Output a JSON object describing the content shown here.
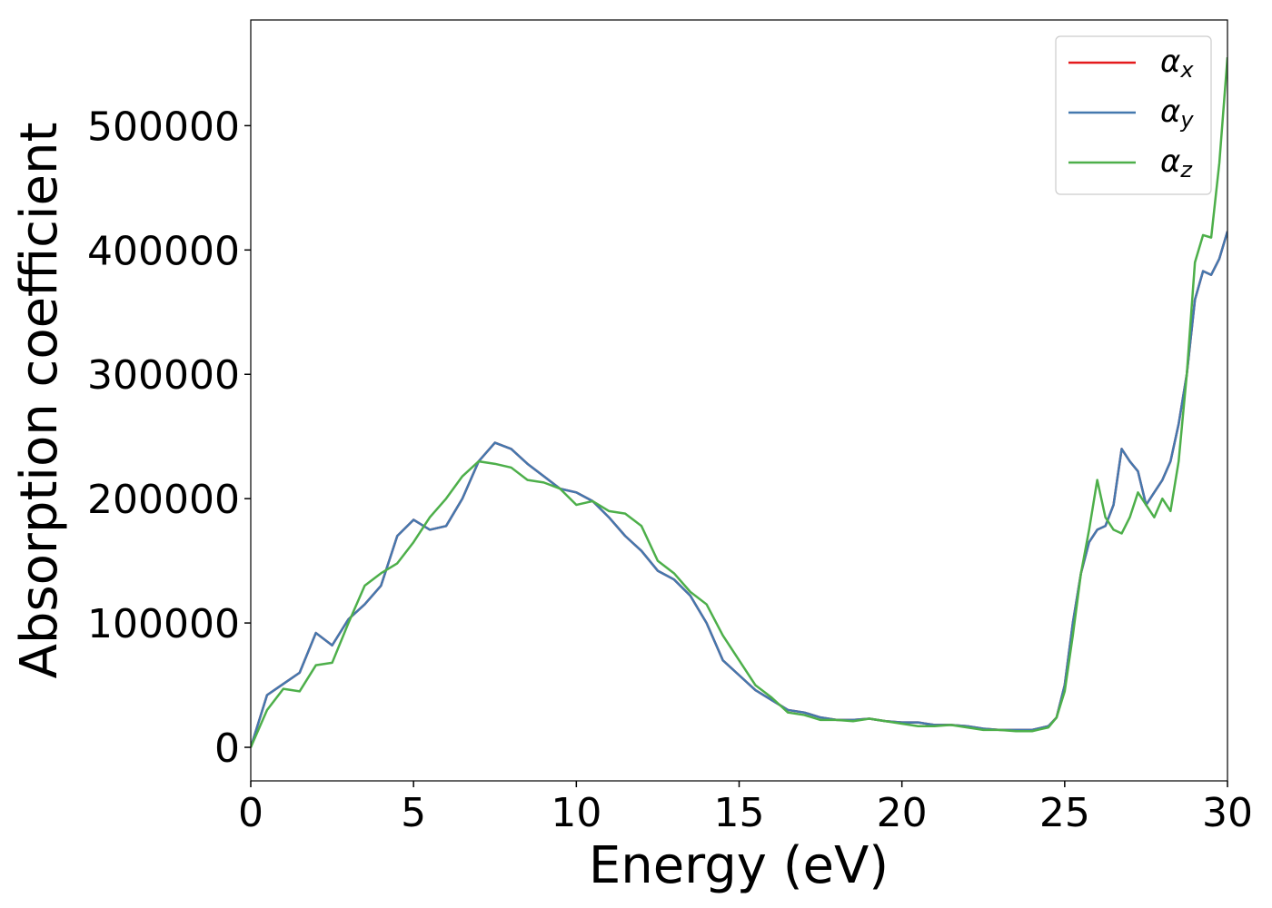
{
  "chart_data": {
    "type": "line",
    "xlabel": "Energy (eV)",
    "ylabel": "Absorption coefficient",
    "x": [
      0,
      0.5,
      1,
      1.5,
      2,
      2.5,
      3,
      3.5,
      4,
      4.5,
      5,
      5.5,
      6,
      6.5,
      7,
      7.5,
      8,
      8.5,
      9,
      9.5,
      10,
      10.5,
      11,
      11.5,
      12,
      12.5,
      13,
      13.5,
      14,
      14.5,
      15,
      15.5,
      16,
      16.5,
      17,
      17.5,
      18,
      18.5,
      19,
      19.5,
      20,
      20.5,
      21,
      21.5,
      22,
      22.5,
      23,
      23.5,
      24,
      24.5,
      24.75,
      25,
      25.25,
      25.5,
      25.75,
      26,
      26.25,
      26.5,
      26.75,
      27,
      27.25,
      27.5,
      27.75,
      28,
      28.25,
      28.5,
      28.75,
      29,
      29.25,
      29.5,
      29.75,
      30
    ],
    "series": [
      {
        "name": "αx",
        "color": "#e41a1c",
        "values": [
          0,
          42000,
          51000,
          60000,
          92000,
          82000,
          103000,
          115000,
          130000,
          170000,
          183000,
          175000,
          178000,
          200000,
          230000,
          245000,
          240000,
          228000,
          218000,
          208000,
          205000,
          198000,
          185000,
          170000,
          158000,
          142000,
          135000,
          122000,
          100000,
          70000,
          58000,
          46000,
          38000,
          30000,
          28000,
          24000,
          22000,
          22000,
          23000,
          21000,
          20000,
          20000,
          18000,
          18000,
          17000,
          15000,
          14000,
          14000,
          14000,
          17000,
          24000,
          50000,
          100000,
          140000,
          165000,
          175000,
          178000,
          195000,
          240000,
          230000,
          222000,
          195000,
          205000,
          215000,
          230000,
          260000,
          300000,
          360000,
          383000,
          380000,
          393000,
          415000
        ]
      },
      {
        "name": "αy",
        "color": "#4478ae",
        "values": [
          0,
          42000,
          51000,
          60000,
          92000,
          82000,
          103000,
          115000,
          130000,
          170000,
          183000,
          175000,
          178000,
          200000,
          230000,
          245000,
          240000,
          228000,
          218000,
          208000,
          205000,
          198000,
          185000,
          170000,
          158000,
          142000,
          135000,
          122000,
          100000,
          70000,
          58000,
          46000,
          38000,
          30000,
          28000,
          24000,
          22000,
          22000,
          23000,
          21000,
          20000,
          20000,
          18000,
          18000,
          17000,
          15000,
          14000,
          14000,
          14000,
          17000,
          24000,
          50000,
          100000,
          140000,
          165000,
          175000,
          178000,
          195000,
          240000,
          230000,
          222000,
          195000,
          205000,
          215000,
          230000,
          260000,
          300000,
          360000,
          383000,
          380000,
          393000,
          415000
        ]
      },
      {
        "name": "αz",
        "color": "#4daf4a",
        "values": [
          0,
          30000,
          47000,
          45000,
          66000,
          68000,
          100000,
          130000,
          140000,
          148000,
          165000,
          185000,
          200000,
          218000,
          230000,
          228000,
          225000,
          215000,
          213000,
          208000,
          195000,
          198000,
          190000,
          188000,
          178000,
          150000,
          140000,
          125000,
          115000,
          90000,
          70000,
          50000,
          40000,
          28000,
          26000,
          22000,
          22000,
          21000,
          23000,
          21000,
          19000,
          17000,
          17000,
          18000,
          16000,
          14000,
          14000,
          13000,
          13000,
          16000,
          24000,
          45000,
          90000,
          140000,
          175000,
          215000,
          185000,
          175000,
          172000,
          185000,
          205000,
          195000,
          185000,
          200000,
          190000,
          230000,
          300000,
          390000,
          412000,
          410000,
          470000,
          555000
        ]
      }
    ],
    "xlim": [
      0,
      30
    ],
    "ylim": [
      -27000,
      585000
    ],
    "xticks": [
      0,
      5,
      10,
      15,
      20,
      25,
      30
    ],
    "yticks": [
      0,
      100000,
      200000,
      300000,
      400000,
      500000
    ],
    "legend": "upper right",
    "grid": false
  }
}
